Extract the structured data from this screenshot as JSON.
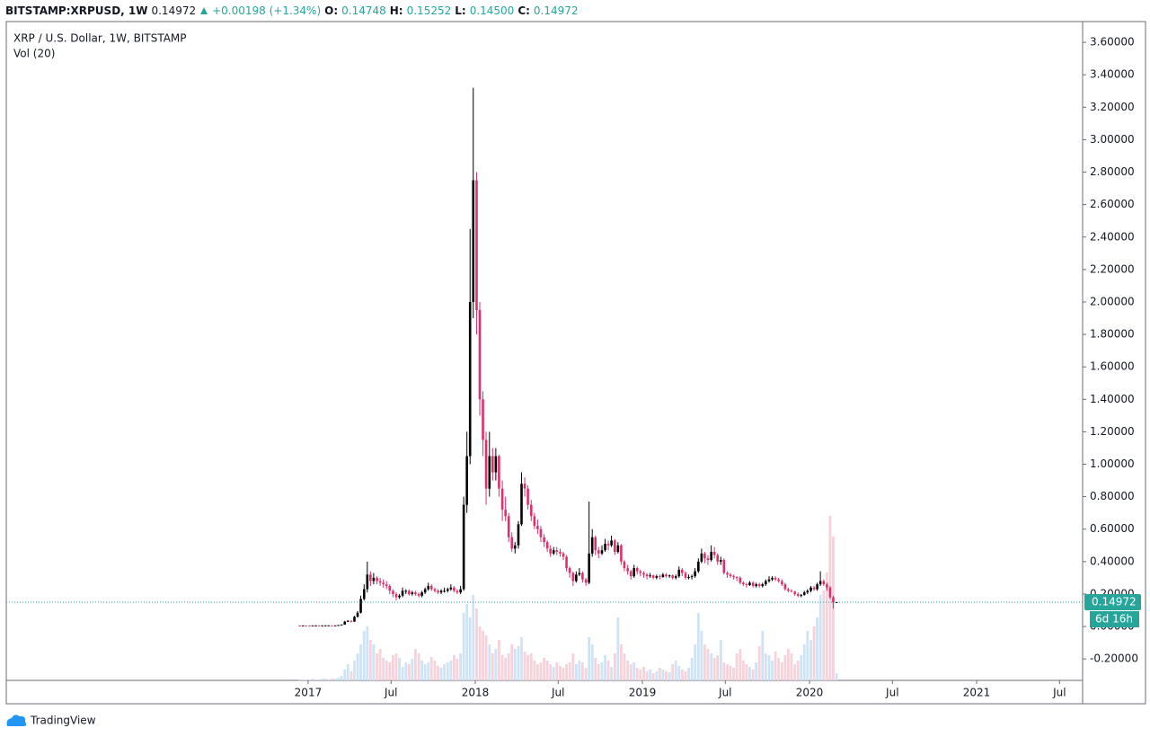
{
  "header": {
    "symbol": "BITSTAMP:XRPUSD, 1W",
    "price": "0.14972",
    "change": "+0.00198 (+1.34%)",
    "open_label": "O:",
    "open": "0.14748",
    "high_label": "H:",
    "high": "0.15252",
    "low_label": "L:",
    "low": "0.14500",
    "close_label": "C:",
    "close": "0.14972"
  },
  "branding": "TradingView",
  "chart_data": {
    "type": "candlestick",
    "legend": [
      "XRP / U.S. Dollar, 1W, BITSTAMP",
      "Vol (20)"
    ],
    "up_color": "#000000",
    "down_color": "#e0306b",
    "volume_up_color": "#cfe3f6",
    "volume_down_color": "#f6d2da",
    "price_line_color": "#26a69a",
    "last_price": 0.14972,
    "countdown": "6d 16h",
    "grid": false,
    "xlim": [
      2015.194,
      2021.634
    ],
    "ylim": [
      -0.332,
      3.728
    ],
    "xticks": [
      2017,
      {
        "value": 2017.496,
        "label": "Jul"
      },
      2018,
      {
        "value": 2018.496,
        "label": "Jul"
      },
      2019,
      {
        "value": 2019.496,
        "label": "Jul"
      },
      2020,
      {
        "value": 2020.496,
        "label": "Jul"
      },
      2021,
      {
        "value": 2021.496,
        "label": "Jul"
      }
    ],
    "yticks": [
      {
        "value": -0.2,
        "label": "-0.20000"
      },
      {
        "value": 0,
        "label": "0.00000"
      },
      {
        "value": 0.2,
        "label": "0.20000"
      },
      {
        "value": 0.4,
        "label": "0.40000"
      },
      {
        "value": 0.6,
        "label": "0.60000"
      },
      {
        "value": 0.8,
        "label": "0.80000"
      },
      {
        "value": 1,
        "label": "1.00000"
      },
      {
        "value": 1.2,
        "label": "1.20000"
      },
      {
        "value": 1.4,
        "label": "1.40000"
      },
      {
        "value": 1.6,
        "label": "1.60000"
      },
      {
        "value": 1.8,
        "label": "1.80000"
      },
      {
        "value": 2,
        "label": "2.00000"
      },
      {
        "value": 2.2,
        "label": "2.20000"
      },
      {
        "value": 2.4,
        "label": "2.40000"
      },
      {
        "value": 2.6,
        "label": "2.60000"
      },
      {
        "value": 2.8,
        "label": "2.80000"
      },
      {
        "value": 3,
        "label": "3.00000"
      },
      {
        "value": 3.2,
        "label": "3.20000"
      },
      {
        "value": 3.4,
        "label": "3.40000"
      },
      {
        "value": 3.6,
        "label": "3.60000"
      }
    ],
    "x": [
      2016.95,
      2016.969,
      2016.988,
      2017.008,
      2017.027,
      2017.046,
      2017.065,
      2017.085,
      2017.104,
      2017.123,
      2017.142,
      2017.162,
      2017.181,
      2017.2,
      2017.219,
      2017.238,
      2017.258,
      2017.277,
      2017.296,
      2017.315,
      2017.335,
      2017.354,
      2017.373,
      2017.392,
      2017.412,
      2017.431,
      2017.45,
      2017.469,
      2017.488,
      2017.508,
      2017.527,
      2017.546,
      2017.565,
      2017.585,
      2017.604,
      2017.623,
      2017.642,
      2017.662,
      2017.681,
      2017.7,
      2017.719,
      2017.738,
      2017.758,
      2017.777,
      2017.796,
      2017.815,
      2017.835,
      2017.854,
      2017.873,
      2017.892,
      2017.912,
      2017.931,
      2017.95,
      2017.969,
      2017.988,
      2018.008,
      2018.027,
      2018.046,
      2018.065,
      2018.085,
      2018.104,
      2018.123,
      2018.142,
      2018.162,
      2018.181,
      2018.2,
      2018.219,
      2018.238,
      2018.258,
      2018.277,
      2018.296,
      2018.315,
      2018.335,
      2018.354,
      2018.373,
      2018.392,
      2018.412,
      2018.431,
      2018.45,
      2018.469,
      2018.488,
      2018.508,
      2018.527,
      2018.546,
      2018.565,
      2018.585,
      2018.604,
      2018.623,
      2018.642,
      2018.662,
      2018.681,
      2018.7,
      2018.719,
      2018.738,
      2018.758,
      2018.777,
      2018.796,
      2018.815,
      2018.835,
      2018.854,
      2018.873,
      2018.892,
      2018.912,
      2018.931,
      2018.95,
      2018.969,
      2018.988,
      2019.008,
      2019.027,
      2019.046,
      2019.065,
      2019.085,
      2019.104,
      2019.123,
      2019.142,
      2019.162,
      2019.181,
      2019.2,
      2019.219,
      2019.238,
      2019.258,
      2019.277,
      2019.296,
      2019.315,
      2019.335,
      2019.354,
      2019.373,
      2019.392,
      2019.412,
      2019.431,
      2019.45,
      2019.469,
      2019.488,
      2019.508,
      2019.527,
      2019.546,
      2019.565,
      2019.585,
      2019.604,
      2019.623,
      2019.642,
      2019.662,
      2019.681,
      2019.7,
      2019.719,
      2019.738,
      2019.758,
      2019.777,
      2019.796,
      2019.815,
      2019.835,
      2019.854,
      2019.873,
      2019.892,
      2019.912,
      2019.931,
      2019.95,
      2019.969,
      2019.988,
      2020.008,
      2020.027,
      2020.046,
      2020.065,
      2020.085,
      2020.104,
      2020.123,
      2020.142,
      2020.162
    ],
    "open": [
      0.0066,
      0.0065,
      0.0068,
      0.0067,
      0.0066,
      0.0068,
      0.007,
      0.0068,
      0.0069,
      0.0071,
      0.0072,
      0.007,
      0.0071,
      0.009,
      0.012,
      0.03,
      0.035,
      0.03,
      0.06,
      0.085,
      0.17,
      0.23,
      0.32,
      0.28,
      0.3,
      0.28,
      0.27,
      0.26,
      0.25,
      0.22,
      0.2,
      0.18,
      0.19,
      0.22,
      0.22,
      0.2,
      0.21,
      0.2,
      0.19,
      0.21,
      0.23,
      0.25,
      0.23,
      0.22,
      0.21,
      0.22,
      0.22,
      0.23,
      0.24,
      0.22,
      0.21,
      0.23,
      0.75,
      1.05,
      2.0,
      2.75,
      1.95,
      1.4,
      1.15,
      0.85,
      1.05,
      0.95,
      1.05,
      0.85,
      0.72,
      0.68,
      0.55,
      0.48,
      0.5,
      0.63,
      0.88,
      0.85,
      0.75,
      0.68,
      0.62,
      0.6,
      0.55,
      0.52,
      0.48,
      0.45,
      0.47,
      0.46,
      0.45,
      0.43,
      0.36,
      0.33,
      0.28,
      0.32,
      0.33,
      0.29,
      0.27,
      0.45,
      0.55,
      0.47,
      0.45,
      0.47,
      0.51,
      0.5,
      0.53,
      0.46,
      0.5,
      0.4,
      0.36,
      0.34,
      0.31,
      0.36,
      0.34,
      0.33,
      0.32,
      0.31,
      0.315,
      0.3,
      0.31,
      0.305,
      0.32,
      0.31,
      0.315,
      0.3,
      0.31,
      0.35,
      0.33,
      0.3,
      0.305,
      0.31,
      0.34,
      0.4,
      0.45,
      0.42,
      0.41,
      0.46,
      0.44,
      0.4,
      0.41,
      0.33,
      0.32,
      0.31,
      0.305,
      0.3,
      0.27,
      0.26,
      0.255,
      0.27,
      0.25,
      0.26,
      0.25,
      0.26,
      0.28,
      0.29,
      0.3,
      0.29,
      0.28,
      0.26,
      0.23,
      0.22,
      0.215,
      0.2,
      0.19,
      0.195,
      0.21,
      0.22,
      0.24,
      0.23,
      0.26,
      0.28,
      0.26,
      0.24,
      0.18,
      0.14748
    ],
    "high": [
      0.0069,
      0.007,
      0.007,
      0.0069,
      0.007,
      0.0073,
      0.0072,
      0.0071,
      0.0074,
      0.0075,
      0.0074,
      0.0073,
      0.0095,
      0.013,
      0.035,
      0.04,
      0.038,
      0.065,
      0.095,
      0.19,
      0.26,
      0.4,
      0.34,
      0.33,
      0.31,
      0.3,
      0.29,
      0.28,
      0.26,
      0.23,
      0.21,
      0.2,
      0.24,
      0.23,
      0.23,
      0.22,
      0.22,
      0.21,
      0.22,
      0.24,
      0.27,
      0.26,
      0.24,
      0.23,
      0.23,
      0.24,
      0.24,
      0.26,
      0.25,
      0.23,
      0.25,
      0.8,
      1.2,
      2.45,
      3.32,
      2.8,
      2.0,
      1.45,
      1.2,
      1.2,
      1.1,
      1.1,
      1.06,
      0.9,
      0.8,
      0.7,
      0.58,
      0.52,
      0.65,
      0.95,
      0.92,
      0.87,
      0.78,
      0.7,
      0.66,
      0.62,
      0.57,
      0.53,
      0.5,
      0.49,
      0.49,
      0.48,
      0.46,
      0.44,
      0.37,
      0.34,
      0.34,
      0.36,
      0.34,
      0.3,
      0.77,
      0.6,
      0.56,
      0.49,
      0.5,
      0.54,
      0.53,
      0.56,
      0.54,
      0.52,
      0.51,
      0.41,
      0.38,
      0.35,
      0.38,
      0.37,
      0.35,
      0.34,
      0.33,
      0.33,
      0.32,
      0.32,
      0.32,
      0.33,
      0.33,
      0.32,
      0.32,
      0.32,
      0.37,
      0.36,
      0.34,
      0.32,
      0.32,
      0.36,
      0.42,
      0.48,
      0.46,
      0.44,
      0.5,
      0.49,
      0.45,
      0.43,
      0.42,
      0.34,
      0.33,
      0.32,
      0.31,
      0.31,
      0.28,
      0.27,
      0.28,
      0.28,
      0.27,
      0.27,
      0.27,
      0.29,
      0.31,
      0.31,
      0.31,
      0.3,
      0.29,
      0.27,
      0.24,
      0.23,
      0.22,
      0.21,
      0.2,
      0.22,
      0.23,
      0.25,
      0.25,
      0.27,
      0.34,
      0.29,
      0.27,
      0.25,
      0.19,
      0.15252
    ],
    "low": [
      0.0063,
      0.0064,
      0.0065,
      0.0064,
      0.0065,
      0.0067,
      0.0066,
      0.0067,
      0.0068,
      0.0069,
      0.0068,
      0.0069,
      0.007,
      0.0088,
      0.011,
      0.027,
      0.026,
      0.029,
      0.055,
      0.08,
      0.16,
      0.21,
      0.25,
      0.26,
      0.26,
      0.25,
      0.24,
      0.23,
      0.2,
      0.18,
      0.16,
      0.17,
      0.18,
      0.2,
      0.19,
      0.19,
      0.19,
      0.18,
      0.18,
      0.2,
      0.22,
      0.22,
      0.21,
      0.2,
      0.2,
      0.21,
      0.21,
      0.22,
      0.21,
      0.2,
      0.2,
      0.22,
      0.7,
      1.0,
      1.9,
      1.8,
      1.3,
      1.05,
      0.75,
      0.8,
      0.9,
      0.9,
      0.8,
      0.65,
      0.65,
      0.52,
      0.46,
      0.45,
      0.48,
      0.62,
      0.8,
      0.72,
      0.65,
      0.6,
      0.57,
      0.52,
      0.49,
      0.46,
      0.43,
      0.44,
      0.44,
      0.43,
      0.41,
      0.34,
      0.3,
      0.25,
      0.27,
      0.31,
      0.27,
      0.25,
      0.26,
      0.43,
      0.44,
      0.42,
      0.44,
      0.46,
      0.47,
      0.49,
      0.44,
      0.45,
      0.38,
      0.34,
      0.32,
      0.29,
      0.3,
      0.32,
      0.31,
      0.3,
      0.29,
      0.3,
      0.29,
      0.29,
      0.29,
      0.3,
      0.3,
      0.3,
      0.29,
      0.29,
      0.3,
      0.31,
      0.29,
      0.29,
      0.29,
      0.3,
      0.33,
      0.39,
      0.39,
      0.38,
      0.4,
      0.42,
      0.38,
      0.38,
      0.32,
      0.3,
      0.3,
      0.29,
      0.28,
      0.26,
      0.25,
      0.24,
      0.25,
      0.24,
      0.24,
      0.24,
      0.24,
      0.25,
      0.27,
      0.28,
      0.28,
      0.27,
      0.25,
      0.22,
      0.21,
      0.21,
      0.19,
      0.18,
      0.18,
      0.19,
      0.2,
      0.21,
      0.22,
      0.22,
      0.25,
      0.25,
      0.22,
      0.17,
      0.11,
      0.145
    ],
    "close": [
      0.0065,
      0.0068,
      0.0067,
      0.0066,
      0.0068,
      0.007,
      0.0068,
      0.0069,
      0.0071,
      0.0072,
      0.007,
      0.0071,
      0.009,
      0.012,
      0.03,
      0.035,
      0.03,
      0.06,
      0.085,
      0.17,
      0.23,
      0.32,
      0.28,
      0.3,
      0.28,
      0.27,
      0.26,
      0.25,
      0.22,
      0.2,
      0.18,
      0.19,
      0.22,
      0.22,
      0.2,
      0.21,
      0.2,
      0.19,
      0.21,
      0.23,
      0.25,
      0.23,
      0.22,
      0.21,
      0.22,
      0.22,
      0.23,
      0.24,
      0.22,
      0.21,
      0.23,
      0.75,
      1.05,
      2.0,
      2.75,
      1.95,
      1.4,
      1.15,
      0.85,
      1.05,
      0.95,
      1.05,
      0.85,
      0.72,
      0.68,
      0.55,
      0.48,
      0.5,
      0.63,
      0.88,
      0.85,
      0.75,
      0.68,
      0.62,
      0.6,
      0.55,
      0.52,
      0.48,
      0.45,
      0.47,
      0.46,
      0.45,
      0.43,
      0.36,
      0.33,
      0.28,
      0.32,
      0.33,
      0.29,
      0.27,
      0.45,
      0.55,
      0.47,
      0.45,
      0.47,
      0.51,
      0.5,
      0.53,
      0.46,
      0.5,
      0.4,
      0.36,
      0.34,
      0.31,
      0.36,
      0.34,
      0.33,
      0.32,
      0.31,
      0.315,
      0.3,
      0.31,
      0.305,
      0.32,
      0.31,
      0.315,
      0.3,
      0.31,
      0.35,
      0.33,
      0.3,
      0.305,
      0.31,
      0.34,
      0.4,
      0.45,
      0.42,
      0.41,
      0.46,
      0.44,
      0.4,
      0.41,
      0.33,
      0.32,
      0.31,
      0.305,
      0.3,
      0.27,
      0.26,
      0.255,
      0.27,
      0.25,
      0.26,
      0.25,
      0.26,
      0.28,
      0.29,
      0.3,
      0.29,
      0.28,
      0.26,
      0.23,
      0.22,
      0.215,
      0.2,
      0.19,
      0.195,
      0.21,
      0.22,
      0.24,
      0.23,
      0.26,
      0.28,
      0.26,
      0.24,
      0.18,
      0.14774,
      0.14972
    ],
    "volume": [
      1,
      1,
      1,
      1,
      2,
      1,
      1,
      2,
      2,
      1,
      2,
      2,
      3,
      5,
      12,
      18,
      10,
      22,
      30,
      40,
      55,
      60,
      45,
      40,
      30,
      35,
      25,
      22,
      20,
      28,
      30,
      25,
      15,
      20,
      18,
      24,
      35,
      30,
      22,
      18,
      20,
      26,
      22,
      16,
      14,
      18,
      20,
      22,
      28,
      24,
      30,
      75,
      85,
      70,
      95,
      80,
      60,
      55,
      50,
      40,
      30,
      35,
      45,
      28,
      25,
      30,
      40,
      35,
      38,
      48,
      32,
      28,
      30,
      22,
      18,
      20,
      25,
      22,
      18,
      15,
      20,
      16,
      14,
      18,
      20,
      30,
      18,
      22,
      20,
      14,
      48,
      40,
      25,
      18,
      20,
      28,
      22,
      15,
      30,
      70,
      40,
      30,
      22,
      18,
      20,
      14,
      12,
      15,
      10,
      12,
      8,
      10,
      14,
      12,
      10,
      9,
      18,
      22,
      16,
      12,
      10,
      14,
      25,
      40,
      75,
      55,
      40,
      35,
      30,
      25,
      28,
      45,
      20,
      18,
      16,
      14,
      30,
      35,
      22,
      18,
      15,
      12,
      20,
      38,
      55,
      30,
      28,
      22,
      32,
      25,
      20,
      28,
      35,
      30,
      18,
      22,
      28,
      40,
      55,
      45,
      60,
      70,
      95,
      100,
      120,
      183,
      160,
      8
    ]
  }
}
